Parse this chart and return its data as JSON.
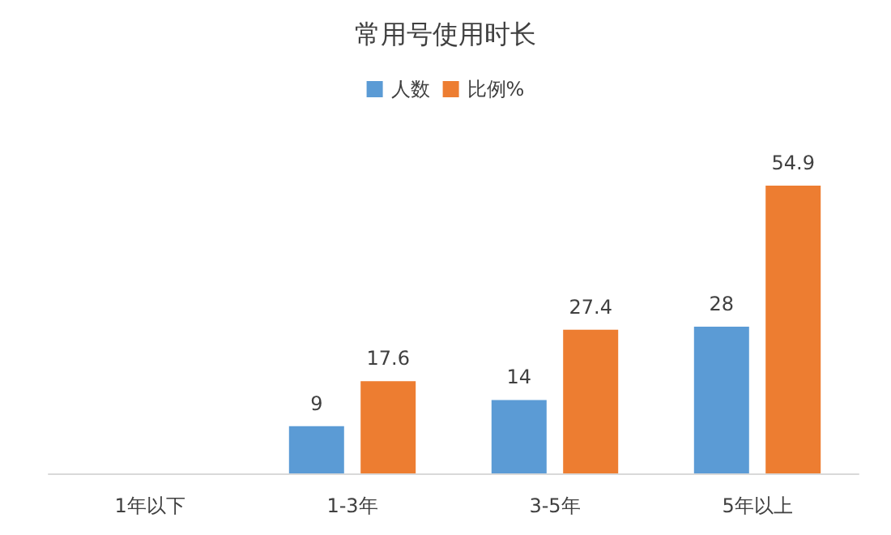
{
  "chart_data": {
    "type": "bar",
    "title": "常用号使用时长",
    "categories": [
      "1年以下",
      "1-3年",
      "3-5年",
      "5年以上"
    ],
    "series": [
      {
        "name": "人数",
        "color": "#5b9bd5",
        "values": [
          null,
          9,
          14,
          28
        ]
      },
      {
        "name": "比例%",
        "color": "#ed7d31",
        "values": [
          null,
          17.6,
          27.4,
          54.9
        ]
      }
    ],
    "tick_labels": "x",
    "data_labels": true,
    "legend": "top",
    "grid": false
  }
}
